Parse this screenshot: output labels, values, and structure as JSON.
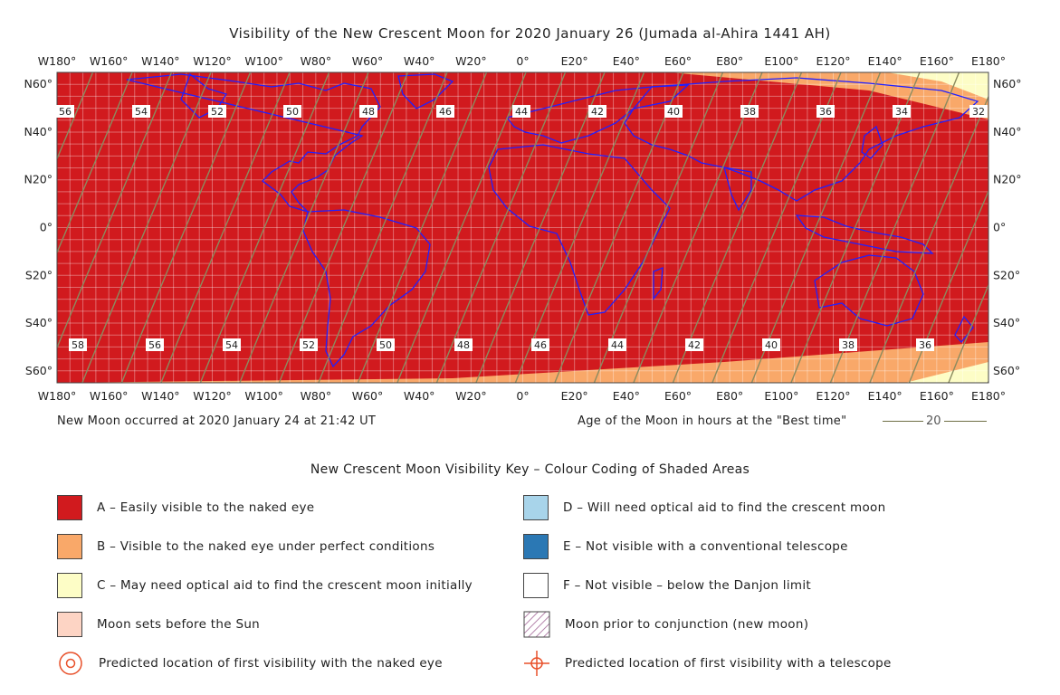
{
  "title": "Visibility of the New Crescent Moon for 2020 January 26 (Jumada al-Ahira 1441 AH)",
  "map": {
    "top_lon_labels": [
      "W180°",
      "W160°",
      "W140°",
      "W120°",
      "W100°",
      "W80°",
      "W60°",
      "W40°",
      "W20°",
      "0°",
      "E20°",
      "E40°",
      "E60°",
      "E80°",
      "E100°",
      "E120°",
      "E140°",
      "E160°",
      "E180°"
    ],
    "bottom_lon_labels": [
      "W180°",
      "W160°",
      "W140°",
      "W120°",
      "W100°",
      "W80°",
      "W60°",
      "W40°",
      "W20°",
      "0°",
      "E20°",
      "E40°",
      "E60°",
      "E80°",
      "E100°",
      "E120°",
      "E140°",
      "E160°",
      "E180°"
    ],
    "lat_labels": [
      "N60°",
      "N40°",
      "N20°",
      "0°",
      "S20°",
      "S40°",
      "S60°"
    ],
    "age_labels_north": [
      "56",
      "54",
      "52",
      "50",
      "48",
      "46",
      "44",
      "42",
      "40",
      "38",
      "36",
      "34",
      "32"
    ],
    "age_labels_south": [
      "58",
      "56",
      "54",
      "52",
      "50",
      "48",
      "46",
      "44",
      "42",
      "40",
      "38",
      "36"
    ],
    "colors": {
      "zone_a": "#d11a1e",
      "zone_b": "#f9a869",
      "zone_c": "#fdfdc6",
      "coastline": "#2020ff",
      "borders": "#c07a3a",
      "age_curves": "#8b8b5f",
      "grid": "#ffffff"
    }
  },
  "new_moon_note": "New Moon occurred at 2020 January 24 at 21:42 UT",
  "age_note": "Age of the Moon in hours at the \"Best time\"",
  "age_sample_value": "20",
  "key": {
    "title": "New Crescent Moon Visibility Key – Colour Coding of Shaded Areas",
    "items": [
      {
        "label": "A – Easily visible to the naked eye",
        "color": "#d11a1e",
        "icon": "swatch"
      },
      {
        "label": "B – Visible to the naked eye under perfect conditions",
        "color": "#f9a869",
        "icon": "swatch"
      },
      {
        "label": "C – May need optical aid to find the crescent moon initially",
        "color": "#fdfdc6",
        "icon": "swatch"
      },
      {
        "label": "Moon sets before the Sun",
        "color": "#fdd4c4",
        "icon": "swatch"
      },
      {
        "label": "Predicted location of first visibility with the naked eye",
        "color": "#e8502a",
        "icon": "circle-dot-icon"
      },
      {
        "label": "D – Will need optical aid to find the crescent moon",
        "color": "#a8d4ea",
        "icon": "swatch"
      },
      {
        "label": "E – Not visible with a conventional telescope",
        "color": "#2b78b4",
        "icon": "swatch"
      },
      {
        "label": "F – Not visible – below the Danjon limit",
        "color": "#ffffff",
        "icon": "swatch"
      },
      {
        "label": "Moon prior to conjunction (new moon)",
        "color": "#9b5a8f",
        "icon": "hatch"
      },
      {
        "label": "Predicted location of first visibility with a telescope",
        "color": "#e8502a",
        "icon": "crosshair-icon"
      }
    ]
  }
}
